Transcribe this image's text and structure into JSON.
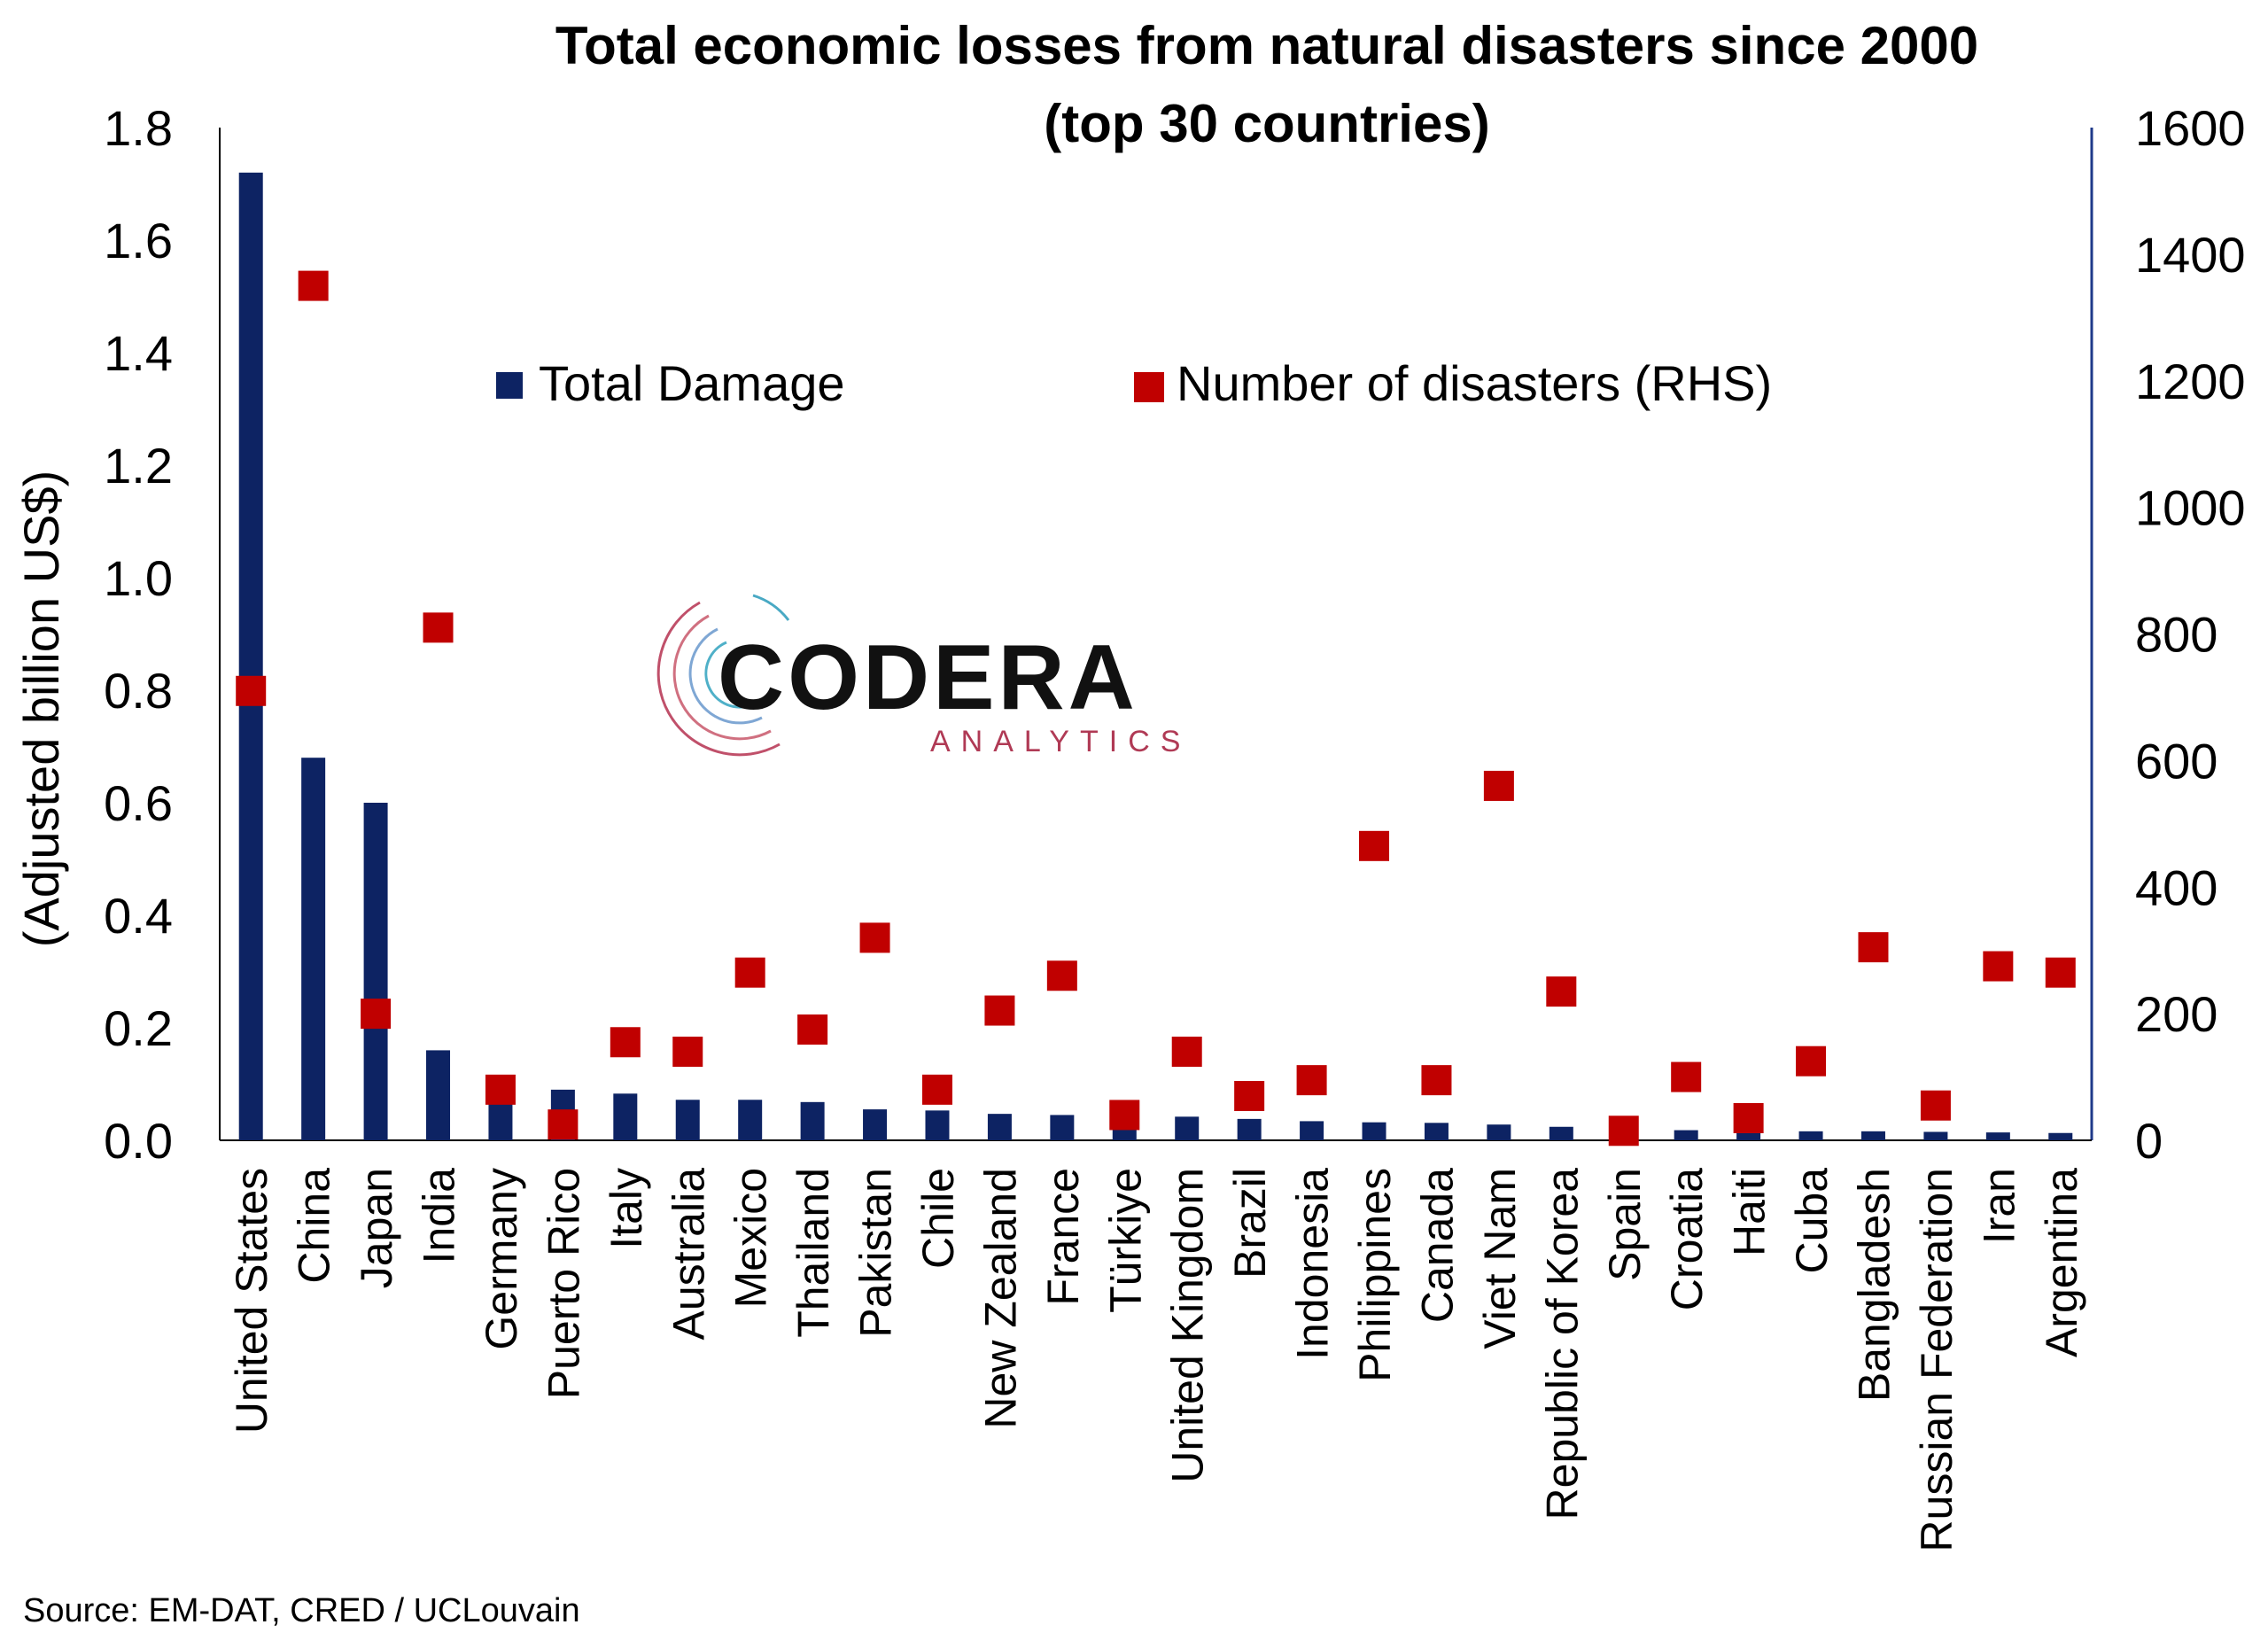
{
  "chart_data": {
    "type": "bar",
    "title_line1": "Total economic losses from natural disasters since 2000",
    "title_line2": "(top 30 countries)",
    "ylabel": "(Adjusted billion US$)",
    "ylim": [
      0,
      1.8
    ],
    "y2lim": [
      0,
      1600
    ],
    "yticks": [
      "0.0",
      "0.2",
      "0.4",
      "0.6",
      "0.8",
      "1.0",
      "1.2",
      "1.4",
      "1.6",
      "1.8"
    ],
    "y2ticks": [
      "0",
      "200",
      "400",
      "600",
      "800",
      "1000",
      "1200",
      "1400",
      "1600"
    ],
    "legend_placement": "top-center",
    "categories": [
      "United States",
      "China",
      "Japan",
      "India",
      "Germany",
      "Puerto Rico",
      "Italy",
      "Australia",
      "Mexico",
      "Thailand",
      "Pakistan",
      "Chile",
      "New Zealand",
      "France",
      "Türkiye",
      "United Kingdom",
      "Brazil",
      "Indonesia",
      "Philippines",
      "Canada",
      "Viet Nam",
      "Republic of Korea",
      "Spain",
      "Croatia",
      "Haiti",
      "Cuba",
      "Bangladesh",
      "Russian Federation",
      "Iran",
      "Argentina"
    ],
    "series": [
      {
        "name": "Total Damage",
        "kind": "bar",
        "axis": "left",
        "color": "#0d2363",
        "values": [
          1.72,
          0.68,
          0.6,
          0.16,
          0.075,
          0.09,
          0.083,
          0.072,
          0.072,
          0.068,
          0.055,
          0.053,
          0.047,
          0.045,
          0.04,
          0.042,
          0.038,
          0.034,
          0.032,
          0.031,
          0.028,
          0.024,
          0.02,
          0.018,
          0.016,
          0.016,
          0.016,
          0.015,
          0.014,
          0.013
        ]
      },
      {
        "name": "Number of disasters (RHS)",
        "kind": "scatter",
        "axis": "right",
        "color": "#c00000",
        "values": [
          710,
          1350,
          200,
          810,
          80,
          25,
          155,
          140,
          265,
          175,
          320,
          80,
          205,
          260,
          40,
          140,
          70,
          95,
          465,
          95,
          560,
          235,
          15,
          100,
          35,
          125,
          305,
          55,
          275,
          265
        ]
      }
    ]
  },
  "source": "Source: EM-DAT, CRED / UCLouvain",
  "logo": {
    "main": "CODERA",
    "sub": "ANALYTICS"
  },
  "colors": {
    "bar": "#0d2363",
    "marker": "#c00000",
    "axis_right": "#1f3a8a"
  }
}
